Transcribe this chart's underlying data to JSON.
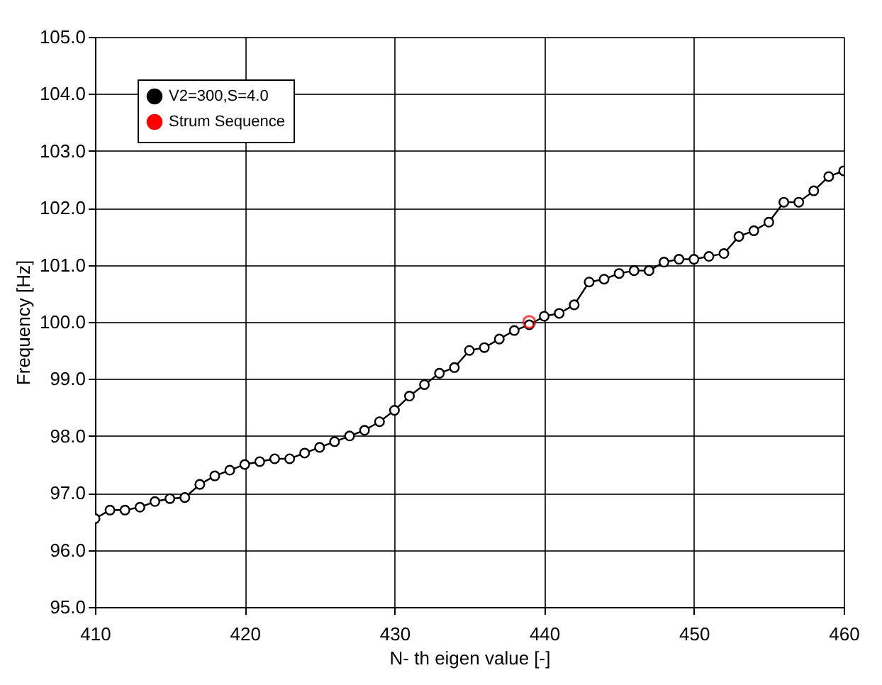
{
  "chart_data": {
    "type": "line",
    "xlabel": "N- th eigen value [-]",
    "ylabel": "Frequency [Hz]",
    "xlim": [
      410,
      460
    ],
    "xticks": [
      410,
      420,
      430,
      440,
      450,
      460
    ],
    "ylim": [
      95,
      105
    ],
    "yticks": [
      {
        "value": 95,
        "label": "95.0"
      },
      {
        "value": 96,
        "label": "96.0"
      },
      {
        "value": 97,
        "label": "97.0"
      },
      {
        "value": 98,
        "label": "98.0"
      },
      {
        "value": 99,
        "label": "99.0"
      },
      {
        "value": 100,
        "label": "100.0"
      },
      {
        "value": 101,
        "label": "101.0"
      },
      {
        "value": 102,
        "label": "102.0"
      },
      {
        "value": 103,
        "label": "103.0"
      },
      {
        "value": 104,
        "label": "104.0"
      },
      {
        "value": 105,
        "label": "105.0"
      }
    ],
    "grid": true,
    "legend": "top left",
    "series": [
      {
        "name": "V2=300,S=4.0",
        "color": "#000000",
        "type": "line",
        "marker": "circle",
        "x": [
          410,
          411,
          412,
          413,
          414,
          415,
          416,
          417,
          418,
          419,
          420,
          421,
          422,
          423,
          424,
          425,
          426,
          427,
          428,
          429,
          430,
          431,
          432,
          433,
          434,
          435,
          436,
          437,
          438,
          439,
          440,
          441,
          442,
          443,
          444,
          445,
          446,
          447,
          448,
          449,
          450,
          451,
          452,
          453,
          454,
          455,
          456,
          457,
          458,
          459,
          460
        ],
        "values": [
          96.55,
          96.7,
          96.7,
          96.75,
          96.85,
          96.9,
          96.92,
          97.15,
          97.3,
          97.4,
          97.5,
          97.55,
          97.6,
          97.6,
          97.7,
          97.8,
          97.9,
          98.0,
          98.1,
          98.25,
          98.45,
          98.7,
          98.9,
          99.1,
          99.2,
          99.5,
          99.55,
          99.7,
          99.85,
          99.95,
          100.1,
          100.15,
          100.3,
          100.7,
          100.75,
          100.85,
          100.9,
          100.9,
          101.05,
          101.1,
          101.1,
          101.15,
          101.2,
          101.5,
          101.6,
          101.75,
          102.1,
          102.1,
          102.3,
          102.55,
          102.65
        ]
      },
      {
        "name": "Strum Sequence",
        "color": "#ff0000",
        "type": "scatter",
        "marker": "circle",
        "x": [
          439
        ],
        "values": [
          100.0
        ]
      }
    ]
  }
}
